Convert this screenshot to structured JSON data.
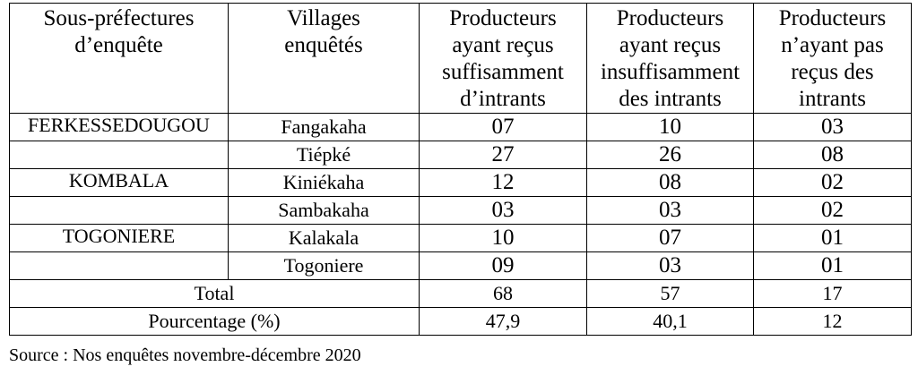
{
  "headers": {
    "col1": [
      "Sous-préfectures",
      "d’enquête"
    ],
    "col2": [
      "Villages",
      "enquêtés"
    ],
    "col3": [
      "Producteurs",
      "ayant reçus",
      "suffisamment",
      "d’intrants"
    ],
    "col4": [
      "Producteurs",
      "ayant reçus",
      "insuffisamment",
      "des intrants"
    ],
    "col5": [
      "Producteurs",
      "n’ayant pas",
      "reçus des",
      "intrants"
    ]
  },
  "groups": [
    {
      "sous_prefecture": "FERKESSEDOUGOU",
      "rows": [
        {
          "village": "Fangakaha",
          "suffisant": "07",
          "insuffisant": "10",
          "aucun": "03"
        },
        {
          "village": "Tiépké",
          "suffisant": "27",
          "insuffisant": "26",
          "aucun": "08"
        }
      ]
    },
    {
      "sous_prefecture": "KOMBALA",
      "rows": [
        {
          "village": "Kiniékaha",
          "suffisant": "12",
          "insuffisant": "08",
          "aucun": "02"
        },
        {
          "village": "Sambakaha",
          "suffisant": "03",
          "insuffisant": "03",
          "aucun": "02"
        }
      ]
    },
    {
      "sous_prefecture": "TOGONIERE",
      "rows": [
        {
          "village": "Kalakala",
          "suffisant": "10",
          "insuffisant": "07",
          "aucun": "01"
        },
        {
          "village": "Togoniere",
          "suffisant": "09",
          "insuffisant": "03",
          "aucun": "01"
        }
      ]
    }
  ],
  "total": {
    "label": "Total",
    "suffisant": "68",
    "insuffisant": "57",
    "aucun": "17"
  },
  "pourcentage": {
    "label": "Pourcentage (%)",
    "suffisant": "47,9",
    "insuffisant": "40,1",
    "aucun": "12"
  },
  "source": "Source : Nos enquêtes novembre-décembre 2020"
}
